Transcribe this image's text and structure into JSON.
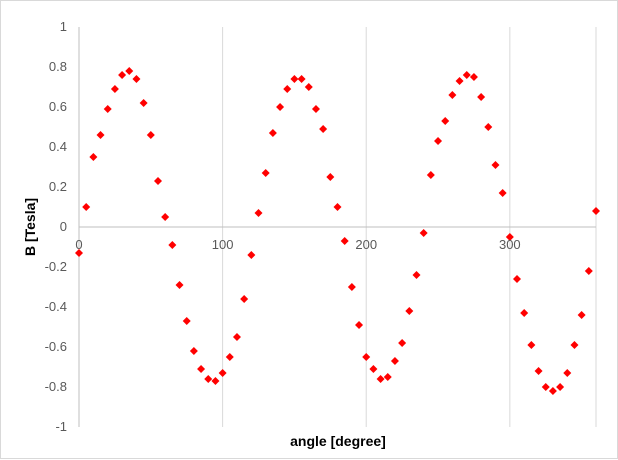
{
  "chart_data": {
    "type": "scatter",
    "title": "",
    "xlabel": "angle [degree]",
    "ylabel": "B [Tesla]",
    "xlim": [
      0,
      360
    ],
    "ylim": [
      -1,
      1
    ],
    "x_ticks": [
      0,
      100,
      200,
      300
    ],
    "y_ticks": [
      -1,
      -0.8,
      -0.6,
      -0.4,
      -0.2,
      0,
      0.2,
      0.4,
      0.6,
      0.8,
      1
    ],
    "x_tick_labels": [
      "0",
      "100",
      "200",
      "300"
    ],
    "y_tick_labels": [
      "-1",
      "-0.8",
      "-0.6",
      "-0.4",
      "-0.2",
      "0",
      "0.2",
      "0.4",
      "0.6",
      "0.8",
      "1"
    ],
    "grid": "vertical",
    "legend": "none",
    "marker": "diamond",
    "color": "#ff0000",
    "series": [
      {
        "x": [
          0,
          5,
          10,
          15,
          20,
          25,
          30,
          35,
          40,
          45,
          50,
          55,
          60,
          65,
          70,
          75,
          80,
          85,
          90,
          95,
          100,
          105,
          110,
          115,
          120,
          125,
          130,
          135,
          140,
          145,
          150,
          155,
          160,
          165,
          170,
          175,
          180,
          185,
          190,
          195,
          200,
          205,
          210,
          215,
          220,
          225,
          230,
          235,
          240,
          245,
          250,
          255,
          260,
          265,
          270,
          275,
          280,
          285,
          290,
          295,
          300,
          305,
          310,
          315,
          320,
          325,
          330,
          335,
          340,
          345,
          350,
          355,
          360
        ],
        "y": [
          -0.13,
          0.1,
          0.35,
          0.46,
          0.59,
          0.69,
          0.76,
          0.78,
          0.74,
          0.62,
          0.46,
          0.23,
          0.05,
          -0.09,
          -0.29,
          -0.47,
          -0.62,
          -0.71,
          -0.76,
          -0.77,
          -0.73,
          -0.65,
          -0.55,
          -0.36,
          -0.14,
          0.07,
          0.27,
          0.47,
          0.6,
          0.69,
          0.74,
          0.74,
          0.7,
          0.59,
          0.49,
          0.25,
          0.1,
          -0.07,
          -0.3,
          -0.49,
          -0.65,
          -0.71,
          -0.76,
          -0.75,
          -0.67,
          -0.58,
          -0.42,
          -0.24,
          -0.03,
          0.26,
          0.43,
          0.53,
          0.66,
          0.73,
          0.76,
          0.75,
          0.65,
          0.5,
          0.31,
          0.17,
          -0.05,
          -0.26,
          -0.43,
          -0.59,
          -0.72,
          -0.8,
          -0.82,
          -0.8,
          -0.73,
          -0.59,
          -0.44,
          -0.22,
          0.08
        ]
      }
    ]
  }
}
